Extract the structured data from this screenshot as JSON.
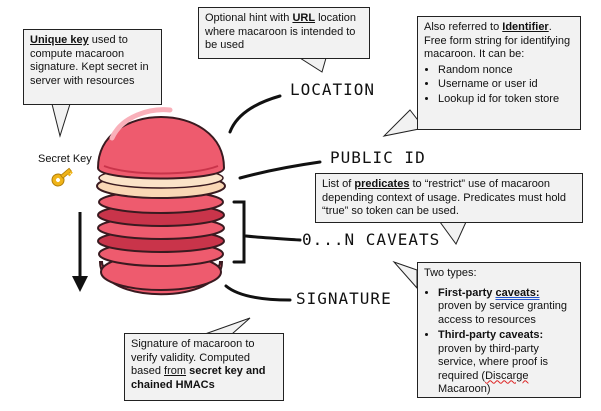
{
  "labels": {
    "location": "LOCATION",
    "public_id": "PUBLIC ID",
    "caveats": "0...N CAVEATS",
    "signature": "SIGNATURE",
    "secret_key": "Secret Key"
  },
  "callouts": {
    "unique_key": {
      "strong": "Unique key",
      "rest": " used to compute macaroon signature. Kept secret in server with resources"
    },
    "location": {
      "pre": "Optional hint with ",
      "strong": "URL",
      "rest": " location where macaroon is intended to be used"
    },
    "identifier": {
      "pre": "Also referred to ",
      "strong": "Identifier",
      "rest": ". Free form string for identifying macaroon. It can be:",
      "bullets": [
        "Random nonce",
        "Username or user id",
        "Lookup id for token store"
      ]
    },
    "predicates": {
      "pre": "List of ",
      "strong": "predicates",
      "rest": " to “restrict” use of macaroon depending context of usage. Predicates must hold “true” so token can be used."
    },
    "types": {
      "heading": "Two types:",
      "first_strong_a": "First-party ",
      "first_strong_b": "caveats:",
      "first_rest": " proven by service granting access to resources",
      "third_strong": "Third-party caveats:",
      "third_rest": " proven by third-party service, where proof is required (",
      "third_link": "Discarge",
      "third_end": " Macaroon)"
    },
    "signature": {
      "pre": "Signature of macaroon to verify validity. Computed based ",
      "from": "from",
      "space": " ",
      "strong": "secret key and chained HMACs"
    }
  },
  "colors": {
    "callout_bg": "#f2f2f2",
    "macaroon_pink": "#ee5b6e",
    "macaroon_dark": "#c9344a",
    "filling": "#f9d7b5",
    "key_gold": "#f0b418"
  },
  "icons": [
    "key-icon",
    "down-arrow-icon",
    "macaroon-illustration"
  ]
}
